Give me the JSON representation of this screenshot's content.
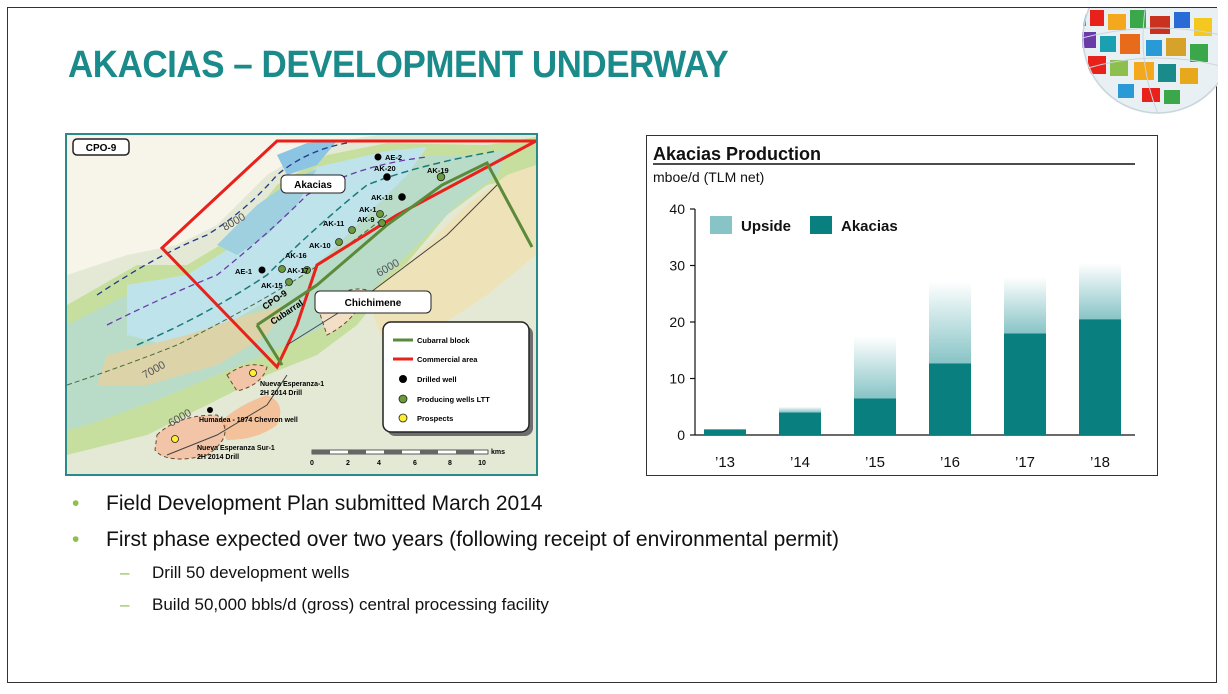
{
  "slide": {
    "title": "AKACIAS – DEVELOPMENT UNDERWAY"
  },
  "map": {
    "block_label": "CPO-9",
    "field_label_akacias": "Akacias",
    "field_label_chichimene": "Chichimene",
    "block_name_label": "Cubarral",
    "block_code_label": "CPO-9",
    "contours": [
      "8000",
      "7000",
      "6000",
      "6000"
    ],
    "wells": [
      {
        "name": "AE-2",
        "kind": "drilled"
      },
      {
        "name": "AK-20",
        "kind": "drilled"
      },
      {
        "name": "AK-19",
        "kind": "producing"
      },
      {
        "name": "AK-18",
        "kind": "drilled"
      },
      {
        "name": "AK-1",
        "kind": "producing"
      },
      {
        "name": "AK-9",
        "kind": "producing"
      },
      {
        "name": "AK-11",
        "kind": "producing"
      },
      {
        "name": "AK-10",
        "kind": "producing"
      },
      {
        "name": "AK-16",
        "kind": "producing"
      },
      {
        "name": "AK-17",
        "kind": "producing"
      },
      {
        "name": "AE-1",
        "kind": "drilled"
      },
      {
        "name": "AK-15",
        "kind": "producing"
      }
    ],
    "prospects": [
      {
        "name": "Nueva Esperanza-1",
        "note": "2H 2014 Drill"
      },
      {
        "name": "Humadea -  1974 Chevron well",
        "note": ""
      },
      {
        "name": "Nueva Esperanza Sur-1",
        "note": "2H 2014 Drill"
      }
    ],
    "legend": [
      {
        "label": "Cubarral block",
        "symbol": "green-line"
      },
      {
        "label": "Commercial area",
        "symbol": "red-line"
      },
      {
        "label": "Drilled well",
        "symbol": "black-dot"
      },
      {
        "label": "Producing wells LTT",
        "symbol": "green-dot"
      },
      {
        "label": "Prospects",
        "symbol": "yellow-dot"
      }
    ],
    "scale": {
      "ticks": [
        "0",
        "2",
        "4",
        "6",
        "8",
        "10"
      ],
      "unit": "kms"
    },
    "colors": {
      "commercial_area": "#e8221b",
      "cubarral_block": "#5a8a3a",
      "drilled": "#000000",
      "producing": "#6a9a3a",
      "prospect": "#ffee33"
    }
  },
  "chart_data": {
    "type": "bar",
    "title": "Akacias Production",
    "subtitle": "mboe/d (TLM net)",
    "categories": [
      "’13",
      "’14",
      "’15",
      "’16",
      "’17",
      "’18"
    ],
    "series": [
      {
        "name": "Akacias",
        "values": [
          1,
          4,
          6.5,
          12.7,
          18,
          20.5
        ],
        "color": "#0a7f80"
      },
      {
        "name": "Upside",
        "values": [
          0,
          1,
          11,
          14.5,
          10,
          10
        ],
        "color": "#88c4c6"
      }
    ],
    "stacked": true,
    "ylim": [
      0,
      40
    ],
    "yticks": [
      "0",
      "10",
      "20",
      "30",
      "40"
    ],
    "legend_position": "top-left"
  },
  "bullets": [
    {
      "text": "Field Development Plan submitted March 2014",
      "subs": []
    },
    {
      "text": "First phase expected over two years (following receipt of environmental permit)",
      "subs": [
        "Drill 50 development wells",
        "Build 50,000 bbls/d (gross) central processing facility"
      ]
    }
  ]
}
